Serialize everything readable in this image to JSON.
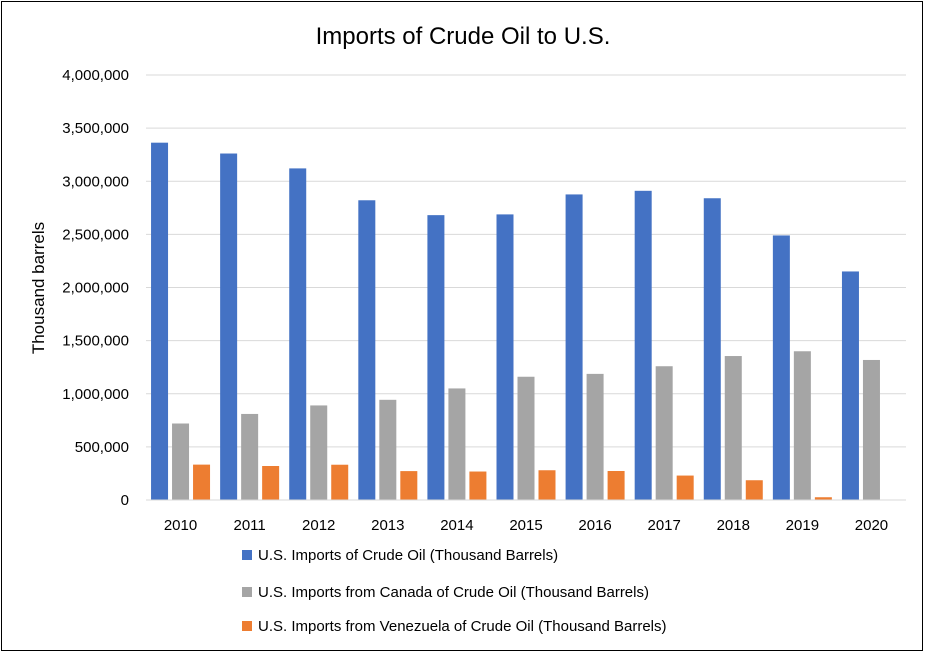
{
  "chart_data": {
    "type": "bar",
    "title": "Imports of Crude Oil to U.S.",
    "xlabel": "",
    "ylabel": "Thousand barrels",
    "ylim": [
      0,
      4000000
    ],
    "yticks": [
      0,
      500000,
      1000000,
      1500000,
      2000000,
      2500000,
      3000000,
      3500000,
      4000000
    ],
    "ytick_labels": [
      "0",
      "500,000",
      "1,000,000",
      "1,500,000",
      "2,000,000",
      "2,500,000",
      "3,000,000",
      "3,500,000",
      "4,000,000"
    ],
    "grid": true,
    "legend_position": "bottom",
    "categories": [
      "2010",
      "2011",
      "2012",
      "2013",
      "2014",
      "2015",
      "2016",
      "2017",
      "2018",
      "2019",
      "2020"
    ],
    "series": [
      {
        "name": "U.S. Imports of Crude Oil (Thousand Barrels)",
        "color": "#4472C4",
        "values": [
          3363000,
          3261000,
          3121000,
          2821000,
          2681000,
          2688000,
          2876000,
          2910000,
          2840000,
          2490000,
          2151000
        ]
      },
      {
        "name": "U.S. Imports from Canada of Crude Oil (Thousand Barrels)",
        "color": "#A5A5A5",
        "values": [
          720000,
          810000,
          890000,
          943000,
          1050000,
          1160000,
          1187000,
          1259000,
          1355000,
          1400000,
          1318000
        ]
      },
      {
        "name": "U.S. Imports from Venezuela of Crude Oil (Thousand Barrels)",
        "color": "#ED7D31",
        "values": [
          333000,
          320000,
          332000,
          272000,
          268000,
          280000,
          273000,
          230000,
          186000,
          26000,
          0
        ]
      }
    ]
  }
}
